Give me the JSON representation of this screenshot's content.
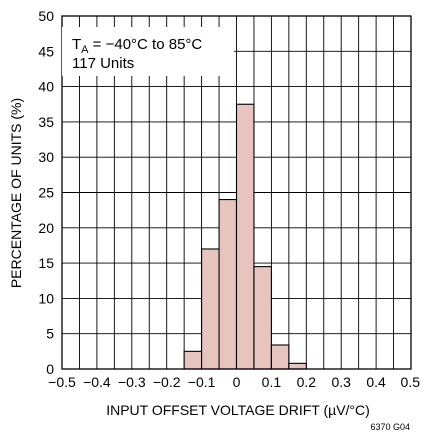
{
  "chart_data": {
    "type": "bar",
    "subtype": "histogram",
    "xlabel": "INPUT OFFSET VOLTAGE DRIFT (µV/°C)",
    "ylabel": "PERCENTAGE OF UNITS (%)",
    "xlim": [
      -0.5,
      0.5
    ],
    "ylim": [
      0,
      50
    ],
    "x_ticks": [
      "−0.5",
      "−0.4",
      "−0.3",
      "−0.2",
      "−0.1",
      "0",
      "0.1",
      "0.2",
      "0.3",
      "0.4",
      "0.5"
    ],
    "y_ticks": [
      "0",
      "5",
      "10",
      "15",
      "20",
      "25",
      "30",
      "35",
      "40",
      "45",
      "50"
    ],
    "bin_width": 0.05,
    "bins": [
      {
        "center": -0.125,
        "value": 2.5
      },
      {
        "center": -0.075,
        "value": 17
      },
      {
        "center": -0.025,
        "value": 24
      },
      {
        "center": 0.025,
        "value": 37.5
      },
      {
        "center": 0.075,
        "value": 14.5
      },
      {
        "center": 0.125,
        "value": 3.4
      },
      {
        "center": 0.175,
        "value": 0.8
      }
    ],
    "bar_color": "#e8c4be",
    "grid": true,
    "annotation": {
      "ta_prefix": "T",
      "ta_sub": "A",
      "ta_rest": " = −40°C to 85°C",
      "units": "117 Units"
    }
  },
  "figure_id": "6370 G04"
}
